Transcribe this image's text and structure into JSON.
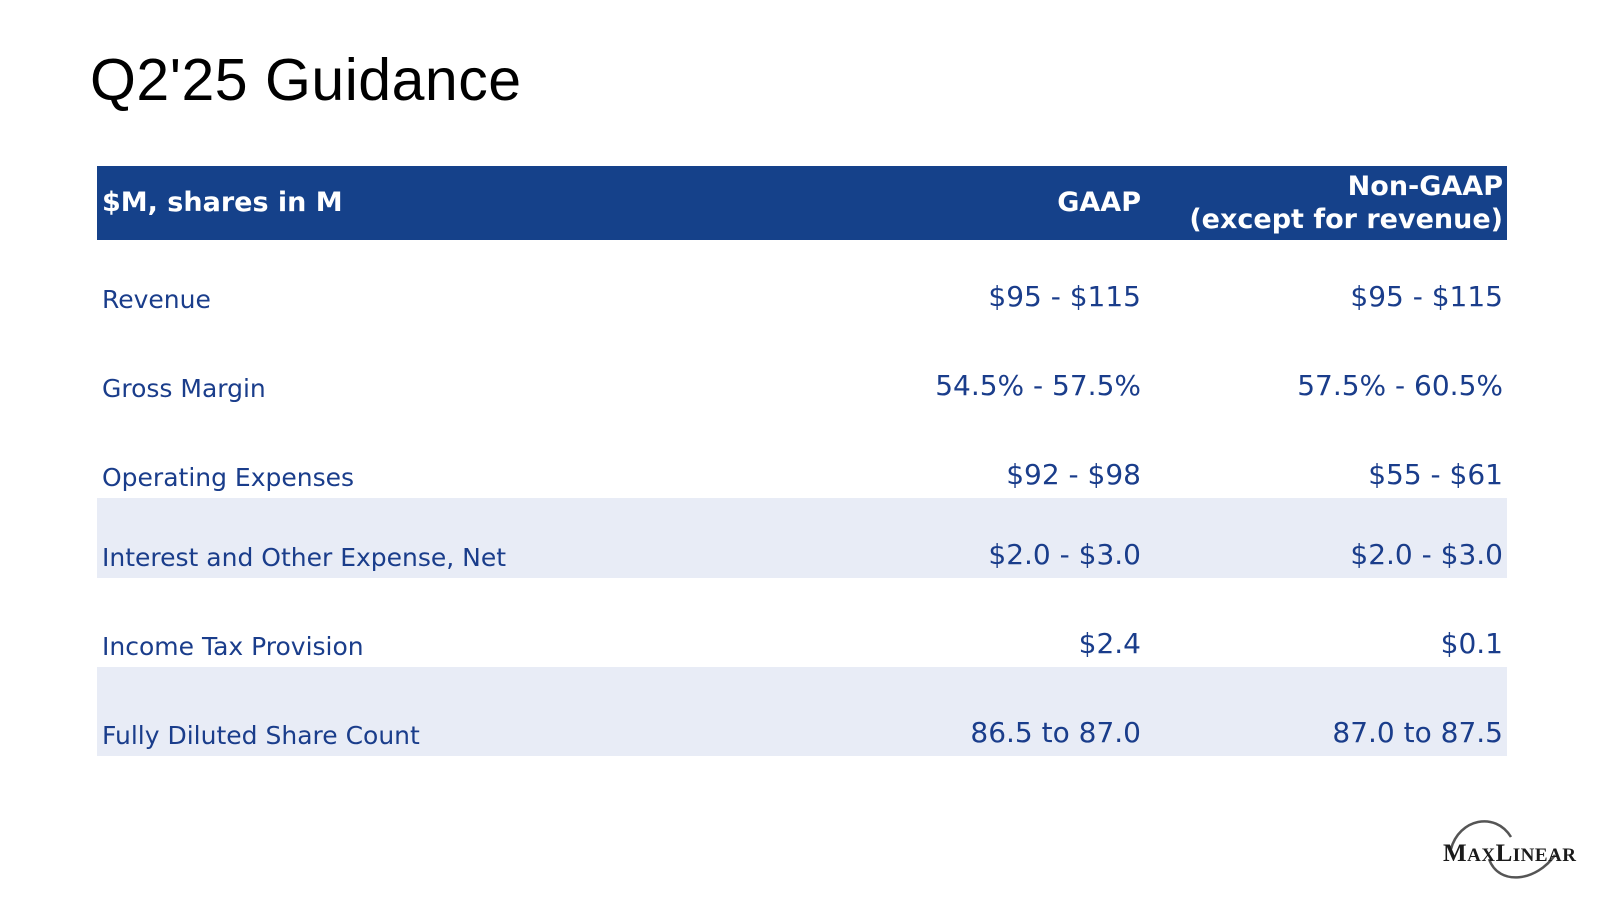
{
  "slide": {
    "title": "Q2'25 Guidance"
  },
  "table": {
    "header": {
      "label": "$M, shares in M",
      "gaap": "GAAP",
      "non_gaap_line1": "Non-GAAP",
      "non_gaap_line2": "(except for revenue)"
    },
    "rows": [
      {
        "label": "Revenue",
        "gaap": "$95 - $115",
        "non_gaap": "$95 - $115"
      },
      {
        "label": "Gross Margin",
        "gaap": "54.5% - 57.5%",
        "non_gaap": "57.5% - 60.5%"
      },
      {
        "label": "Operating Expenses",
        "gaap": "$92 - $98",
        "non_gaap": "$55 - $61"
      },
      {
        "label": "Interest and Other Expense, Net",
        "gaap": "$2.0 - $3.0",
        "non_gaap": "$2.0 - $3.0"
      },
      {
        "label": "Income Tax Provision",
        "gaap": "$2.4",
        "non_gaap": "$0.1"
      },
      {
        "label": "Fully Diluted Share Count",
        "gaap": "86.5 to 87.0",
        "non_gaap": "87.0 to 87.5"
      }
    ]
  },
  "logo": {
    "text": "MAXLINEAR",
    "part1_big": "M",
    "part1_small": "AX",
    "part2_big": "L",
    "part2_small": "INEAR"
  },
  "colors": {
    "header_bg": "#15418a",
    "header_text": "#ffffff",
    "row_text": "#1a3d8b",
    "row_shade": "#e8ecf6"
  }
}
